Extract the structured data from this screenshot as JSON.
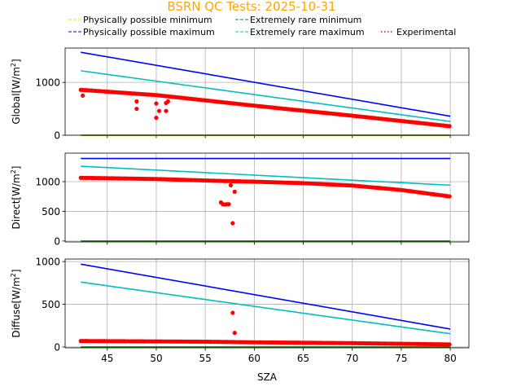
{
  "chart_data": {
    "type": "scatter",
    "title": "BSRN QC Tests: 2025-10-31",
    "xlabel": "SZA",
    "xlim": [
      40.7,
      81.9
    ],
    "xticks": [
      45,
      50,
      55,
      60,
      65,
      70,
      75,
      80
    ],
    "grid": true,
    "legend": {
      "placement": "top",
      "entries": [
        {
          "label": "Physically possible minimum",
          "color": "#ffd700",
          "style": "dashed"
        },
        {
          "label": "Extremely rare minimum",
          "color": "#008000",
          "style": "dashed"
        },
        {
          "label": "Physically possible maximum",
          "color": "#0000ff",
          "style": "dashed"
        },
        {
          "label": "Extremely rare maximum",
          "color": "#00bfbf",
          "style": "dashed"
        },
        {
          "label": "Experimental",
          "color": "#ff0000",
          "style": "dotted"
        }
      ]
    },
    "panels": [
      {
        "ylabel": "Global[W/m",
        "ylabel_sup": "2",
        "ylabel_end": "]",
        "ylim": [
          0,
          1650
        ],
        "yticks": [
          0,
          1000
        ],
        "lines": [
          {
            "name": "Physically possible minimum",
            "color": "#ffd700",
            "x": [
              42.3,
              80
            ],
            "y": [
              -4,
              -4
            ]
          },
          {
            "name": "Extremely rare minimum",
            "color": "#008000",
            "x": [
              42.3,
              80
            ],
            "y": [
              0,
              0
            ]
          },
          {
            "name": "Physically possible maximum",
            "color": "#0000ff",
            "x": [
              42.3,
              80
            ],
            "y": [
              1570,
              360
            ]
          },
          {
            "name": "Extremely rare maximum",
            "color": "#00bfbf",
            "x": [
              42.3,
              80
            ],
            "y": [
              1220,
              260
            ]
          }
        ],
        "trend": {
          "x": [
            42.3,
            50,
            60,
            70,
            80
          ],
          "y": [
            860,
            760,
            560,
            370,
            170
          ]
        },
        "outliers": [
          [
            42.5,
            750
          ],
          [
            48,
            640
          ],
          [
            48,
            500
          ],
          [
            50,
            600
          ],
          [
            50,
            330
          ],
          [
            50.3,
            460
          ],
          [
            51,
            610
          ],
          [
            51,
            460
          ],
          [
            51.2,
            640
          ]
        ]
      },
      {
        "ylabel": "Direct[W/m",
        "ylabel_sup": "2",
        "ylabel_end": "]",
        "ylim": [
          -15,
          1480
        ],
        "yticks": [
          0,
          500,
          1000
        ],
        "lines": [
          {
            "name": "Physically possible minimum",
            "color": "#ffd700",
            "x": [
              42.3,
              80
            ],
            "y": [
              -2,
              -2
            ]
          },
          {
            "name": "Extremely rare minimum",
            "color": "#008000",
            "x": [
              42.3,
              80
            ],
            "y": [
              0,
              0
            ]
          },
          {
            "name": "Physically possible maximum",
            "color": "#0000ff",
            "x": [
              42.3,
              80
            ],
            "y": [
              1390,
              1390
            ]
          },
          {
            "name": "Extremely rare maximum",
            "color": "#00bfbf",
            "x": [
              42.3,
              80
            ],
            "y": [
              1260,
              940
            ]
          }
        ],
        "trend": {
          "x": [
            42.3,
            50,
            56,
            60,
            65,
            70,
            75,
            80
          ],
          "y": [
            1065,
            1045,
            1015,
            1000,
            975,
            935,
            860,
            750
          ]
        },
        "outliers": [
          [
            56.6,
            650
          ],
          [
            56.8,
            620
          ],
          [
            57,
            615
          ],
          [
            57.2,
            620
          ],
          [
            57.4,
            620
          ],
          [
            57.6,
            940
          ],
          [
            57.8,
            1010
          ],
          [
            57.8,
            300
          ],
          [
            58,
            830
          ]
        ]
      },
      {
        "ylabel": "Diffuse[W/m",
        "ylabel_sup": "2",
        "ylabel_end": "]",
        "ylim": [
          -10,
          1030
        ],
        "yticks": [
          0,
          500,
          1000
        ],
        "lines": [
          {
            "name": "Physically possible minimum",
            "color": "#ffd700",
            "x": [
              42.3,
              80
            ],
            "y": [
              -4,
              -4
            ]
          },
          {
            "name": "Extremely rare minimum",
            "color": "#008000",
            "x": [
              42.3,
              80
            ],
            "y": [
              0,
              0
            ]
          },
          {
            "name": "Physically possible maximum",
            "color": "#0000ff",
            "x": [
              42.3,
              80
            ],
            "y": [
              970,
              210
            ]
          },
          {
            "name": "Extremely rare maximum",
            "color": "#00bfbf",
            "x": [
              42.3,
              80
            ],
            "y": [
              760,
              155
            ]
          }
        ],
        "trend": {
          "x": [
            42.3,
            55,
            60,
            70,
            80
          ],
          "y": [
            70,
            62,
            55,
            45,
            30
          ]
        },
        "outliers": [
          [
            57.8,
            400
          ],
          [
            58,
            165
          ]
        ]
      }
    ]
  }
}
